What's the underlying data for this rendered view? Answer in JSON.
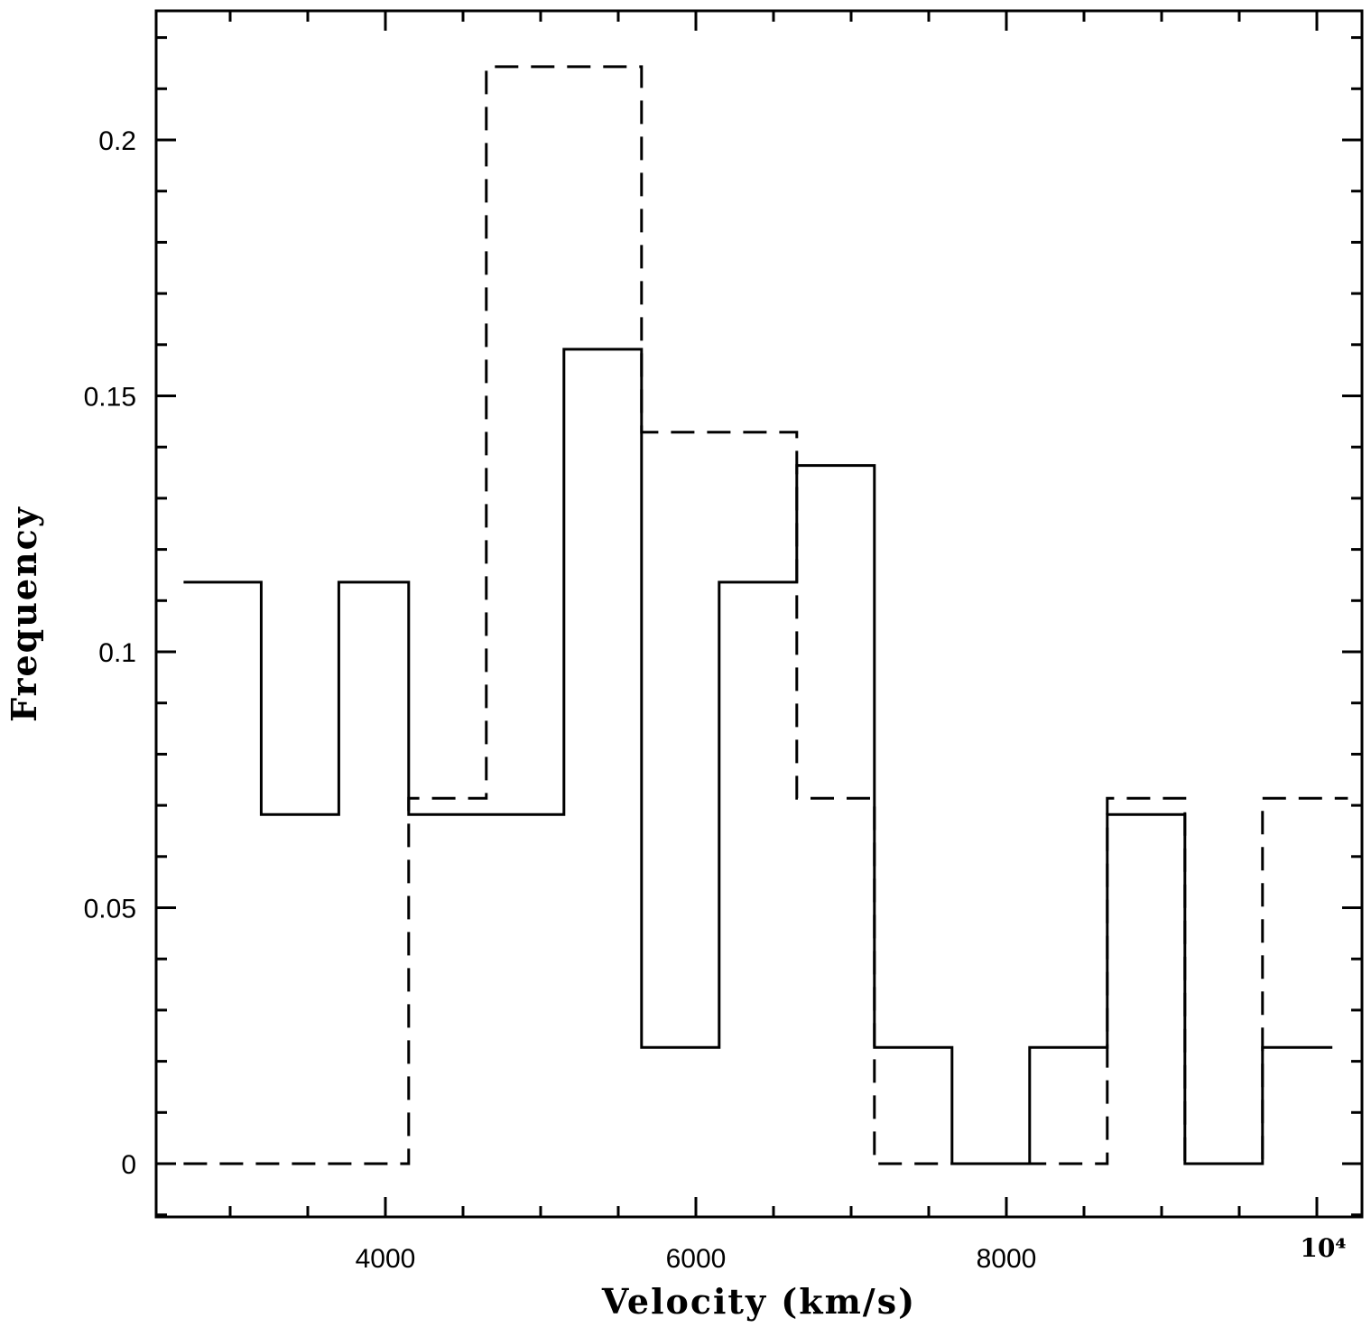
{
  "chart_data": {
    "type": "histogram",
    "title": "",
    "xlabel": "Velocity (km/s)",
    "ylabel": "Frequency",
    "xlim": [
      2700,
      10200
    ],
    "ylim": [
      -0.01,
      0.225
    ],
    "x_ticks": [
      {
        "value": 4000,
        "label": "4000"
      },
      {
        "value": 6000,
        "label": "6000"
      },
      {
        "value": 8000,
        "label": "8000"
      },
      {
        "value": 10000,
        "label": "10⁴"
      }
    ],
    "y_ticks": [
      {
        "value": 0,
        "label": "0"
      },
      {
        "value": 0.05,
        "label": "0.05"
      },
      {
        "value": 0.1,
        "label": "0.1"
      },
      {
        "value": 0.15,
        "label": "0.15"
      },
      {
        "value": 0.2,
        "label": "0.2"
      }
    ],
    "grid": false,
    "series": [
      {
        "style": "solid",
        "bin_edges": [
          2700,
          3200,
          3700,
          4150,
          4650,
          5150,
          5650,
          6150,
          6650,
          7150,
          7650,
          8150,
          8650,
          9150,
          9650,
          10100
        ],
        "values": [
          0.1136,
          0.0682,
          0.1136,
          0.0682,
          0.0682,
          0.1591,
          0.0227,
          0.1136,
          0.1364,
          0.0227,
          0.0,
          0.0227,
          0.0682,
          0.0,
          0.0227
        ]
      },
      {
        "style": "dashed",
        "bin_edges": [
          2700,
          3200,
          3700,
          4150,
          4650,
          5150,
          5650,
          6150,
          6650,
          7150,
          7650,
          8150,
          8650,
          9150,
          9650,
          10200
        ],
        "values": [
          0.0,
          0.0,
          0.0,
          0.0714,
          0.2143,
          0.2143,
          0.1429,
          0.1429,
          0.0714,
          0.0,
          0.0,
          0.0,
          0.0714,
          0.0,
          0.0714
        ]
      }
    ]
  }
}
